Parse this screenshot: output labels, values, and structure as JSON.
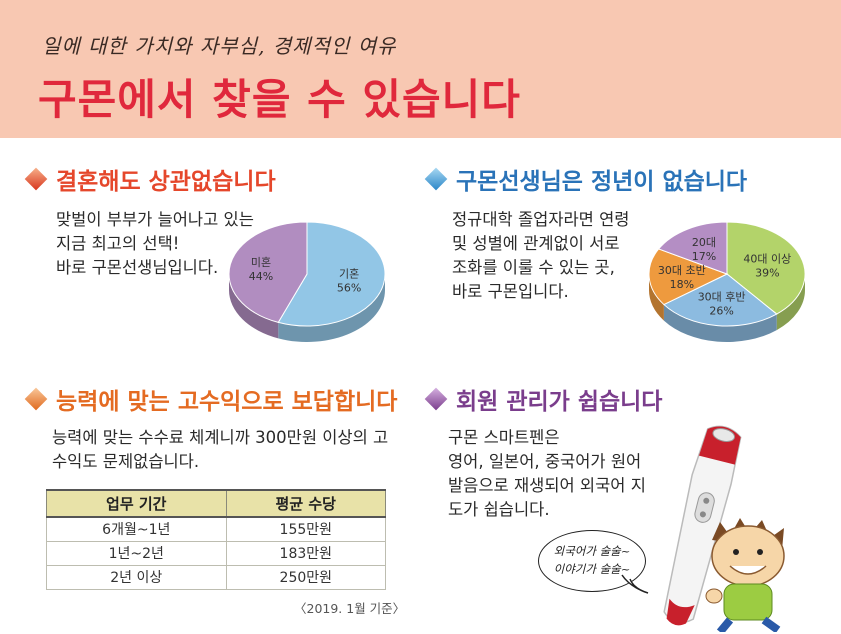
{
  "header": {
    "subtitle": "일에 대한 가치와 자부심, 경제적인 여유",
    "title": "구몬에서 찾을 수 있습니다"
  },
  "sections": {
    "marriage": {
      "title": "결혼해도 상관없습니다",
      "lines": [
        "맞벌이 부부가 늘어나고 있는",
        "지금 최고의 선택!",
        "바로 구몬선생님입니다."
      ]
    },
    "age": {
      "title": "구몬선생님은 정년이 없습니다",
      "lines": [
        "정규대학 졸업자라면 연령",
        "및 성별에 관계없이 서로",
        "조화를 이룰 수 있는 곳,",
        "바로 구몬입니다."
      ]
    },
    "income": {
      "title": "능력에 맞는 고수익으로 보답합니다",
      "lines": [
        "능력에 맞는 수수료 체계니까 300만원 이상의 고",
        "수익도 문제없습니다."
      ],
      "table": {
        "headers": [
          "업무 기간",
          "평균 수당"
        ],
        "rows": [
          [
            "6개월~1년",
            "155만원"
          ],
          [
            "1년~2년",
            "183만원"
          ],
          [
            "2년 이상",
            "250만원"
          ]
        ]
      },
      "note": "〈2019. 1월 기준〉"
    },
    "member": {
      "title": "회원 관리가 쉽습니다",
      "lines": [
        "구몬 스마트펜은",
        "영어, 일본어, 중국어가 원어",
        "발음으로 재생되어 외국어 지",
        "도가 쉽습니다."
      ],
      "bubble": [
        "외국어가 술술~",
        "이야기가 술술~"
      ]
    }
  },
  "chart_data": [
    {
      "type": "pie",
      "title": "",
      "labels": [
        "기혼",
        "미혼"
      ],
      "values": [
        56,
        44
      ],
      "value_labels": [
        "56%",
        "44%"
      ],
      "colors": [
        "#92c6e6",
        "#b18dc0"
      ]
    },
    {
      "type": "pie",
      "title": "",
      "labels": [
        "40대 이상",
        "30대 후반",
        "30대 초반",
        "20대"
      ],
      "values": [
        39,
        26,
        18,
        17
      ],
      "value_labels": [
        "39%",
        "26%",
        "18%",
        "17%"
      ],
      "colors": [
        "#b3d36a",
        "#8cbbe0",
        "#ee9a3e",
        "#b48ec4"
      ]
    }
  ],
  "colors": {
    "header_bg": "#f8c8b2",
    "title_red": "#e0283c",
    "sec1": "#e5472b",
    "sec2": "#2a73b8",
    "sec3": "#e46b22",
    "sec4": "#7a3d8c"
  },
  "icons": [
    "diamond-bullet-icon",
    "smart-pen-illustration",
    "cartoon-boy-illustration",
    "speech-bubble"
  ]
}
